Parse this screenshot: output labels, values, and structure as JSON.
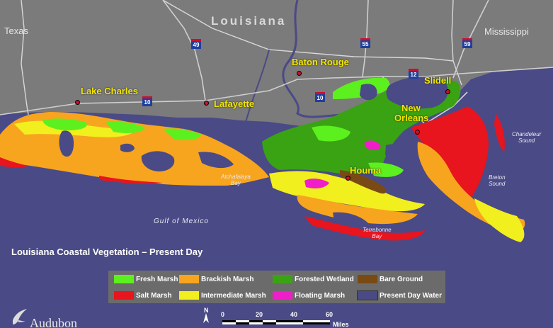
{
  "title": "Louisiana Coastal Vegetation – Present Day",
  "states": {
    "texas": "Texas",
    "louisiana": "Louisiana",
    "mississippi": "Mississippi"
  },
  "cities": {
    "lake_charles": "Lake Charles",
    "lafayette": "Lafayette",
    "baton_rouge": "Baton Rouge",
    "slidell": "Slidell",
    "new_orleans_1": "New",
    "new_orleans_2": "Orleans",
    "houma": "Houma"
  },
  "waters": {
    "gulf": "Gulf of Mexico",
    "atchafalaya_1": "Atchafalaya",
    "atchafalaya_2": "Bay",
    "terrebonne_1": "Terrebonne",
    "terrebonne_2": "Bay",
    "chandeleur_1": "Chandeleur",
    "chandeleur_2": "Sound",
    "breton_1": "Breton",
    "breton_2": "Sound"
  },
  "highways": [
    "49",
    "55",
    "59",
    "12",
    "10",
    "10"
  ],
  "legend": [
    {
      "label": "Fresh Marsh",
      "color": "#5cf01e"
    },
    {
      "label": "Brackish Marsh",
      "color": "#f7a51e"
    },
    {
      "label": "Forested Wetland",
      "color": "#3aa313"
    },
    {
      "label": "Bare Ground",
      "color": "#7a4a14"
    },
    {
      "label": "Salt Marsh",
      "color": "#e8141e"
    },
    {
      "label": "Intermediate Marsh",
      "color": "#f2ef1e"
    },
    {
      "label": "Floating Marsh",
      "color": "#f01ec8"
    },
    {
      "label": "Present Day Water",
      "color": "#4a4a86"
    }
  ],
  "scale": {
    "ticks": [
      "0",
      "20",
      "40",
      "60"
    ],
    "unit": "Miles",
    "north": "N"
  },
  "logo": {
    "word": "Audubon"
  },
  "icons": [
    "city-dot-icon",
    "interstate-shield-icon",
    "north-arrow-icon",
    "bird-logo-icon"
  ]
}
